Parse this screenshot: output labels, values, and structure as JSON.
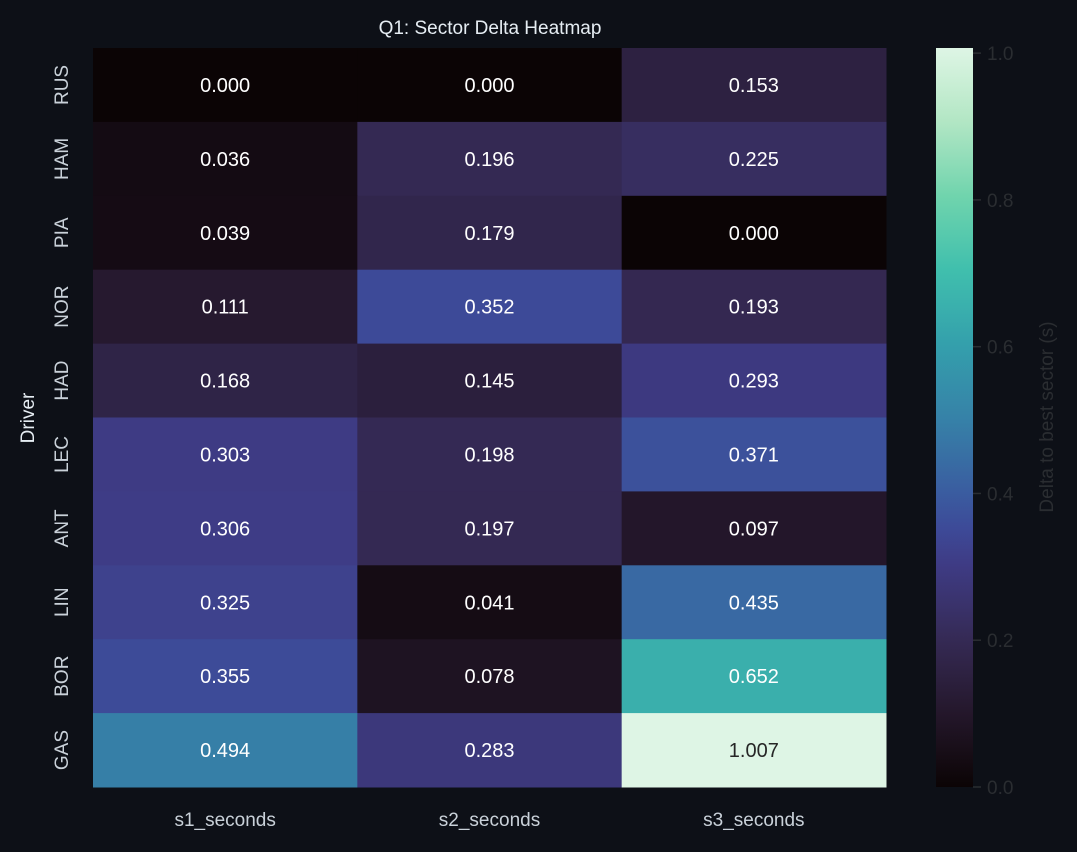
{
  "chart_data": {
    "type": "heatmap",
    "title": "Q1: Sector Delta Heatmap",
    "xlabel": "",
    "ylabel": "Driver",
    "columns": [
      "s1_seconds",
      "s2_seconds",
      "s3_seconds"
    ],
    "rows": [
      "RUS",
      "HAM",
      "PIA",
      "NOR",
      "HAD",
      "LEC",
      "ANT",
      "LIN",
      "BOR",
      "GAS"
    ],
    "values": [
      [
        0.0,
        0.0,
        0.153
      ],
      [
        0.036,
        0.196,
        0.225
      ],
      [
        0.039,
        0.179,
        0.0
      ],
      [
        0.111,
        0.352,
        0.193
      ],
      [
        0.168,
        0.145,
        0.293
      ],
      [
        0.303,
        0.198,
        0.371
      ],
      [
        0.306,
        0.197,
        0.097
      ],
      [
        0.325,
        0.041,
        0.435
      ],
      [
        0.355,
        0.078,
        0.652
      ],
      [
        0.494,
        0.283,
        1.007
      ]
    ],
    "value_format": "3 decimals",
    "colormap": "mako",
    "colorbar": {
      "label": "Delta to best sector (s)",
      "range": [
        0,
        1.007
      ],
      "ticks": [
        "0.0",
        "0.2",
        "0.4",
        "0.6",
        "0.8",
        "1.0"
      ]
    },
    "colors": {
      "background": "#0d1017",
      "tick_text": "#c9d1d9",
      "colorbar_text": "#2a2d31"
    }
  }
}
